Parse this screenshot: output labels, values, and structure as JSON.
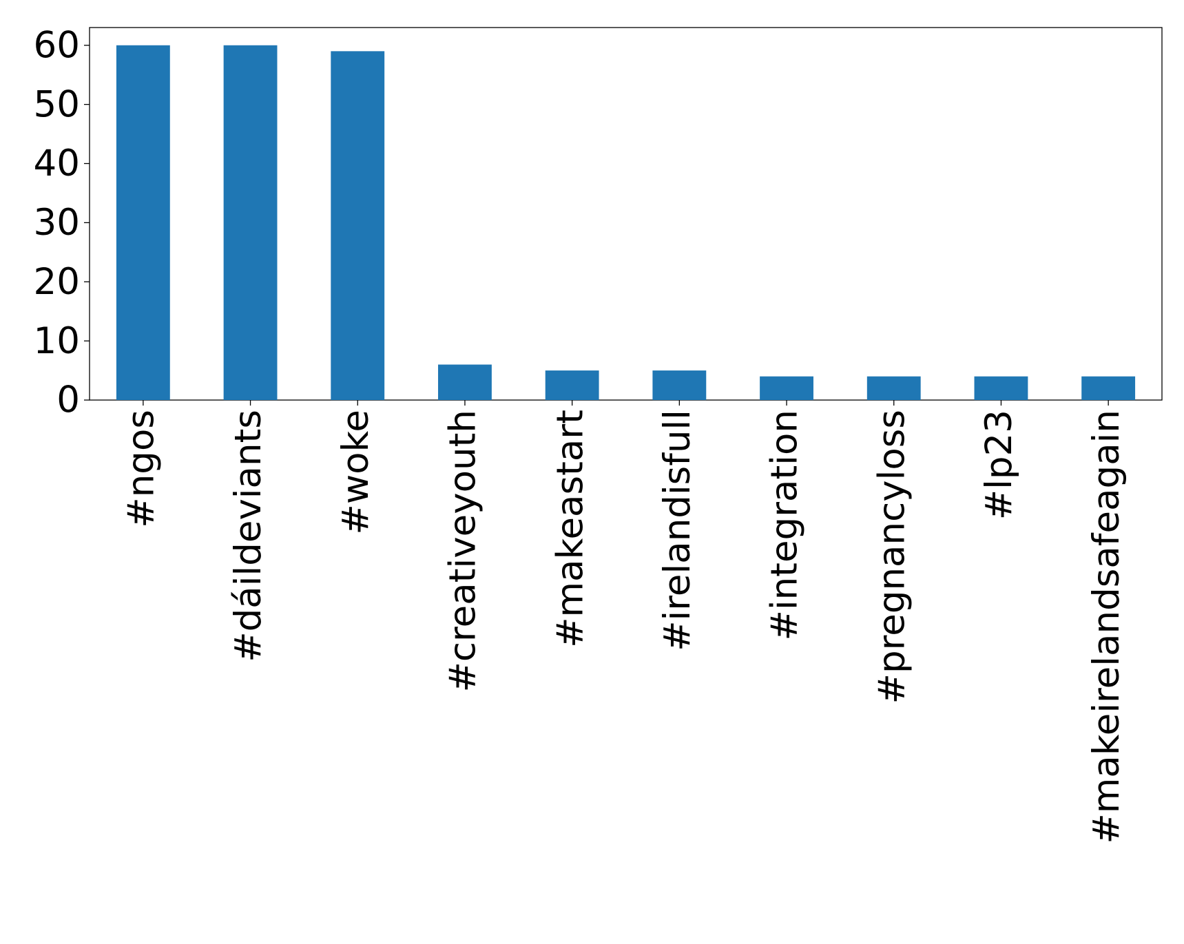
{
  "chart_data": {
    "type": "bar",
    "categories": [
      "#ngos",
      "#dáildeviants",
      "#woke",
      "#creativeyouth",
      "#makeastart",
      "#irelandisfull",
      "#integration",
      "#pregnancyloss",
      "#lp23",
      "#makeirelandsafeagain"
    ],
    "values": [
      60,
      60,
      59,
      6,
      5,
      5,
      4,
      4,
      4,
      4
    ],
    "color": "#1f77b4",
    "ylim": [
      0,
      63
    ],
    "yticks": [
      0,
      10,
      20,
      30,
      40,
      50,
      60
    ],
    "grid": false
  }
}
